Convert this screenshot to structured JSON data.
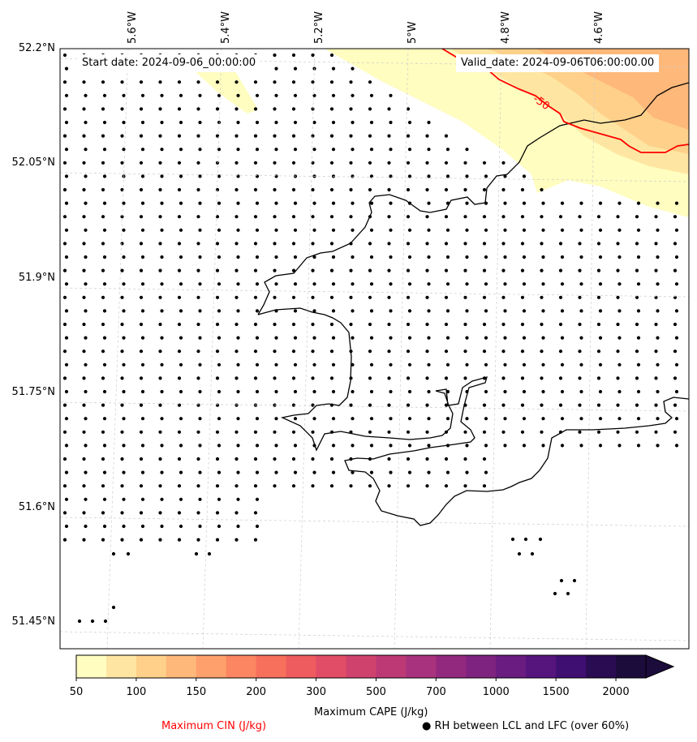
{
  "map": {
    "start_date": "Start date: 2024-09-06_00:00:00",
    "valid_date": "Valid_date: 2024-09-06T06:00:00.00",
    "lat_labels": [
      "52.2°N",
      "52.05°N",
      "51.9°N",
      "51.75°N",
      "51.6°N",
      "51.45°N"
    ],
    "lon_labels": [
      "5.6°W",
      "5.4°W",
      "5.2°W",
      "5°W",
      "4.8°W",
      "4.6°W"
    ],
    "cin_contour_label": "-50",
    "cin_contour_color": "#ff0000"
  },
  "colorbar": {
    "title": "Maximum CAPE (J/kg)",
    "ticks": [
      "50",
      "100",
      "150",
      "200",
      "300",
      "500",
      "700",
      "1000",
      "1500",
      "2000"
    ],
    "colors": [
      "#fffdbf",
      "#fee6a2",
      "#fed08a",
      "#feb87a",
      "#fda06c",
      "#fb8661",
      "#f7705c",
      "#ee5c5f",
      "#e14d66",
      "#d0426e",
      "#bc3976",
      "#a8327d",
      "#93297f",
      "#7e237f",
      "#6a1c81",
      "#56147d",
      "#3f0f72",
      "#2a0c53",
      "#1b0c3b"
    ],
    "extend": "max"
  },
  "legend": {
    "cin_label": "Maximum CIN (J/kg)",
    "rh_label": "● RH between LCL and LFC (over 60%)"
  }
}
